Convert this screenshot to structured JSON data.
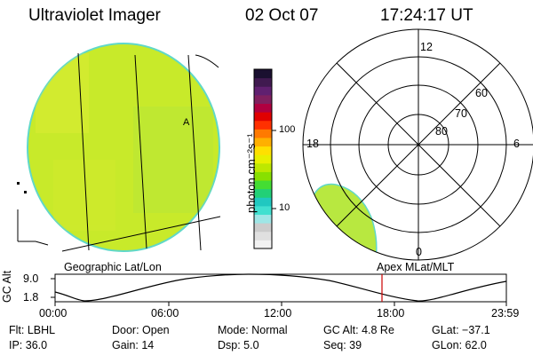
{
  "header": {
    "instrument": "Ultraviolet Imager",
    "date": "02 Oct 07",
    "time": "17:24:17 UT"
  },
  "colorbar": {
    "unit_label": "photon cm⁻²s⁻¹",
    "ticks": [
      "100",
      "10"
    ],
    "colors": [
      "#f2f2f2",
      "#e0e0e0",
      "#cccccc",
      "#9fe6e6",
      "#40e0d0",
      "#20c8c0",
      "#22d077",
      "#44dd33",
      "#88e000",
      "#bde800",
      "#e8f000",
      "#ffe000",
      "#ffb000",
      "#ff7a00",
      "#ff3000",
      "#e00000",
      "#b00040",
      "#80205f",
      "#602070",
      "#401a50",
      "#1a1030"
    ]
  },
  "geo_panel": {
    "label": "Geographic Lat/Lon",
    "fill_color": "#c8ea2a"
  },
  "polar_panel": {
    "label": "Apex MLat/MLT",
    "mlt_labels": {
      "top": "12",
      "left": "18",
      "right": "6",
      "bottom": "0"
    },
    "lat_labels": [
      "60",
      "70",
      "80"
    ],
    "fill_color": "#b8e840"
  },
  "altitude_plot": {
    "ylabel": "GC Alt",
    "yticks": [
      "9.0",
      "1.8"
    ],
    "xticks": [
      "00:00",
      "06:00",
      "12:00",
      "18:00",
      "23:59"
    ],
    "marker_color": "#cc0000"
  },
  "info": {
    "flt": "Flt: LBHL",
    "ip": "IP: 36.0",
    "door": "Door: Open",
    "gain": "Gain: 14",
    "mode": "Mode: Normal",
    "dsp": "Dsp:     5.0",
    "gc_alt": "GC Alt: 4.8 Re",
    "seq": "Seq: 39",
    "glat": "GLat: −37.1",
    "glon": "GLon:  62.0"
  }
}
